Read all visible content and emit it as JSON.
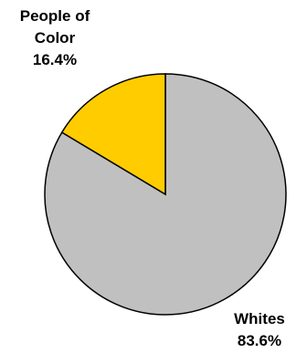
{
  "chart_data": {
    "type": "pie",
    "start_angle_deg": 0,
    "direction": "clockwise",
    "stroke_color": "#000000",
    "slices": [
      {
        "label_line1": "People of",
        "label_line2": "Color",
        "value_label": "16.4%",
        "value": 16.4,
        "color": "#FFCC00"
      },
      {
        "label_line1": "Whites",
        "label_line2": "",
        "value_label": "83.6%",
        "value": 83.6,
        "color": "#C0C0C0"
      }
    ]
  }
}
